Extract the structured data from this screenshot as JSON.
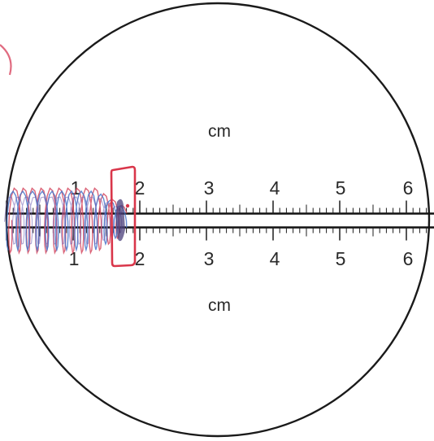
{
  "ruler": {
    "unit_top": "cm",
    "unit_bottom": "cm",
    "numbers_top": [
      "1",
      "2",
      "3",
      "4",
      "5",
      "6"
    ],
    "numbers_bottom": [
      "1",
      "2",
      "3",
      "4",
      "5",
      "6"
    ]
  },
  "colors": {
    "ink": "#2a2a2a",
    "circle": "#1a1a1a",
    "highlight_box": "#d9364a",
    "wave_red": "#d54a62",
    "wave_blue": "#4a76c9",
    "wave_purple": "#6b5bb0"
  }
}
